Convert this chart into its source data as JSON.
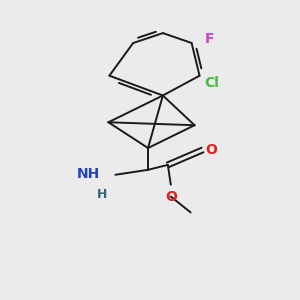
{
  "background_color": "#ebebeb",
  "figure_size": [
    3.0,
    3.0
  ],
  "dpi": 100,
  "colors": {
    "bond": "#1a1a1a",
    "F": "#cc44cc",
    "Cl": "#44bb44",
    "NH2_N": "#2244bb",
    "NH2_H": "#336677",
    "O": "#dd2222"
  }
}
